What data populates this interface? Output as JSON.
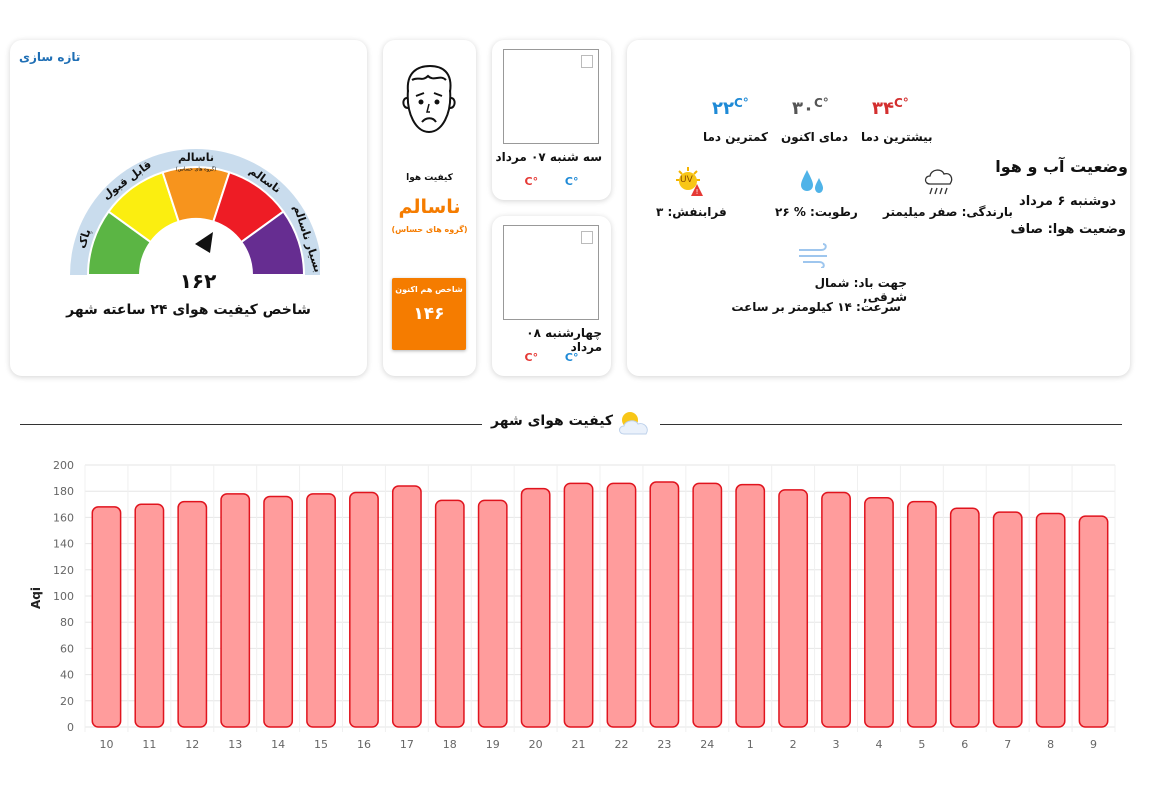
{
  "gauge": {
    "refresh_label": "تازه سازی",
    "value": "۱۶۲",
    "title": "شاخص کیفیت هوای ۲۴ ساعته شهر",
    "segments": [
      {
        "label": "پاک",
        "color": "#5bb544"
      },
      {
        "label": "قابل قبول",
        "color": "#fbee10"
      },
      {
        "label": "ناسالم",
        "sublabel": "(گروه های حساس)",
        "color": "#f7941d"
      },
      {
        "label": "ناسالم",
        "color": "#ee1c25"
      },
      {
        "label": "بسیار ناسالم",
        "color": "#662d91"
      }
    ]
  },
  "air_quality": {
    "label": "کیفیت هوا",
    "status": "ناسالم",
    "group": "(گروه های حساس)",
    "box_title": "شاخص هم اکنون",
    "box_value": "۱۴۶",
    "color": "#f57c00"
  },
  "forecast": [
    {
      "day": "سه شنبه ۰۷ مرداد",
      "max": "C°",
      "min": "C°"
    },
    {
      "day": "چهارشنبه ۰۸ مرداد",
      "max": "C°",
      "min": "C°"
    }
  ],
  "weather": {
    "title": "وضعیت آب و هوا",
    "date": "دوشنبه ۶ مرداد",
    "condition": "وضعیت هوا: صاف",
    "max_temp": "۳۴",
    "max_label": "بیشترین دما",
    "current_temp": "۳۰",
    "current_label": "دمای اکنون",
    "min_temp": "۲۲",
    "min_label": "کمترین دما",
    "degree_unit": "C°",
    "precipitation": "بارندگی: صفر میلیمتر",
    "humidity": "رطوبت: % ۲۶",
    "uv": "فرابنفش: ۳",
    "uv_icon_text": "UV",
    "wind_direction": "جهت باد: شمال شرقی,",
    "wind_speed": "سرعت: ۱۴ کیلومتر بر ساعت",
    "colors": {
      "max": "#d32f2f",
      "current": "#555555",
      "min": "#1f8ad6"
    }
  },
  "section": {
    "title": "کیفیت هوای شهر"
  },
  "chart_data": {
    "type": "bar",
    "title": "",
    "xlabel": "",
    "ylabel": "Aqi",
    "ylim": [
      0,
      200
    ],
    "yticks": [
      0,
      20,
      40,
      60,
      80,
      100,
      120,
      140,
      160,
      180,
      200
    ],
    "grid": true,
    "categories": [
      "10",
      "11",
      "12",
      "13",
      "14",
      "15",
      "16",
      "17",
      "18",
      "19",
      "20",
      "21",
      "22",
      "23",
      "24",
      "1",
      "2",
      "3",
      "4",
      "5",
      "6",
      "7",
      "8",
      "9"
    ],
    "values": [
      168,
      170,
      172,
      178,
      176,
      178,
      179,
      184,
      173,
      173,
      182,
      186,
      186,
      187,
      186,
      185,
      181,
      179,
      175,
      172,
      167,
      164,
      163,
      161
    ],
    "bar_fill": "#ff9c9c",
    "bar_stroke": "#e0141e"
  }
}
